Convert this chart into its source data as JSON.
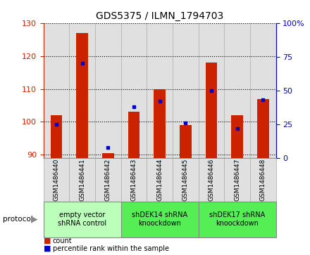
{
  "title": "GDS5375 / ILMN_1794703",
  "samples": [
    "GSM1486440",
    "GSM1486441",
    "GSM1486442",
    "GSM1486443",
    "GSM1486444",
    "GSM1486445",
    "GSM1486446",
    "GSM1486447",
    "GSM1486448"
  ],
  "counts": [
    102,
    127,
    90.5,
    103,
    110,
    99,
    118,
    102,
    107
  ],
  "percentiles": [
    25,
    70,
    8,
    38,
    42,
    26,
    50,
    22,
    43
  ],
  "ylim_left": [
    89,
    130
  ],
  "yticks_left": [
    90,
    100,
    110,
    120,
    130
  ],
  "ylim_right": [
    0,
    100
  ],
  "yticks_right": [
    0,
    25,
    50,
    75,
    100
  ],
  "ytick_labels_right": [
    "0",
    "25",
    "50",
    "75",
    "100%"
  ],
  "bar_color": "#cc2200",
  "dot_color": "#0000cc",
  "bar_bottom": 89,
  "group_defs": [
    {
      "label": "empty vector\nshRNA control",
      "start": 0,
      "end": 2,
      "color": "#bbffbb"
    },
    {
      "label": "shDEK14 shRNA\nknoockdown",
      "start": 3,
      "end": 5,
      "color": "#55ee55"
    },
    {
      "label": "shDEK17 shRNA\nknoockdown",
      "start": 6,
      "end": 8,
      "color": "#55ee55"
    }
  ],
  "left_tick_color": "#cc2200",
  "right_tick_color": "#0000cc",
  "grid_color": "#000000",
  "background_color": "#ffffff",
  "col_bg_color": "#e0e0e0"
}
